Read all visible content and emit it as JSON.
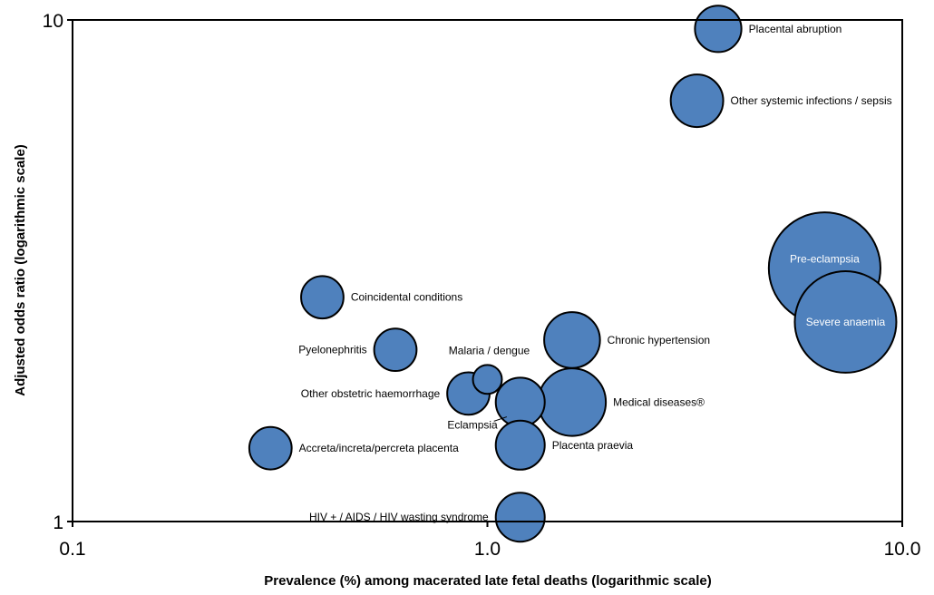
{
  "chart_data": {
    "type": "scatter",
    "title": "",
    "xlabel": "Prevalence (%) among macerated late fetal deaths (logarithmic scale)",
    "ylabel": "Adjusted odds ratio (logarithmic scale)",
    "xscale": "log",
    "yscale": "log",
    "xlim": [
      0.1,
      10.0
    ],
    "ylim": [
      1,
      10
    ],
    "x_tick_labels": [
      "0.1",
      "1.0",
      "10.0"
    ],
    "y_tick_labels": [
      "1",
      "10"
    ],
    "grid": false,
    "bubble_color": "#4f81bd",
    "points": [
      {
        "label": "Placental abruption",
        "x": 3.6,
        "y": 9.6,
        "size": 0.9
      },
      {
        "label": "Other systemic infections / sepsis",
        "x": 3.2,
        "y": 6.9,
        "size": 1.15
      },
      {
        "label": "Pre-eclampsia",
        "x": 6.5,
        "y": 3.2,
        "size": 5.2
      },
      {
        "label": "Severe anaemia",
        "x": 7.3,
        "y": 2.5,
        "size": 4.3
      },
      {
        "label": "Coincidental conditions",
        "x": 0.4,
        "y": 2.8,
        "size": 0.75
      },
      {
        "label": "Pyelonephritis",
        "x": 0.6,
        "y": 2.2,
        "size": 0.75
      },
      {
        "label": "Chronic hypertension",
        "x": 1.6,
        "y": 2.3,
        "size": 1.3
      },
      {
        "label": "Malaria / dengue",
        "x": 1.0,
        "y": 1.92,
        "size": 0.35
      },
      {
        "label": "Other obstetric haemorrhage",
        "x": 0.9,
        "y": 1.8,
        "size": 0.75
      },
      {
        "label": "Eclampsia",
        "x": 1.2,
        "y": 1.73,
        "size": 1.0
      },
      {
        "label": "Medical diseases®",
        "x": 1.6,
        "y": 1.73,
        "size": 1.9
      },
      {
        "label": "Accreta/increta/percreta placenta",
        "x": 0.3,
        "y": 1.4,
        "size": 0.75
      },
      {
        "label": "Placenta praevia",
        "x": 1.2,
        "y": 1.42,
        "size": 1.0
      },
      {
        "label": "HIV + / AIDS / HIV wasting syndrome",
        "x": 1.2,
        "y": 1.02,
        "size": 1.0
      }
    ]
  }
}
